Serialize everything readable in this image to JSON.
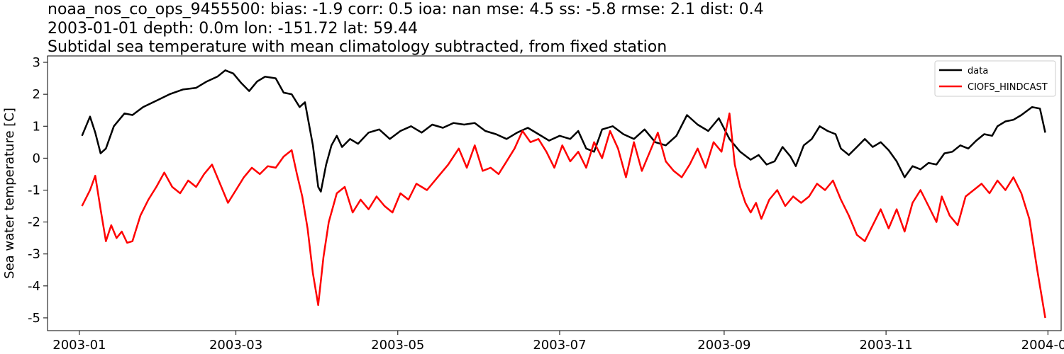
{
  "chart_data": {
    "type": "line",
    "title_lines": [
      "noaa_nos_co_ops_9455500: bias: -1.9  corr: 0.5  ioa: nan  mse: 4.5  ss: -5.8  rmse: 2.1  dist: 0.4",
      "2003-01-01 depth: 0.0m lon: -151.72 lat: 59.44",
      "Subtidal sea temperature with mean climatology subtracted, from fixed station"
    ],
    "xlabel": "",
    "ylabel": "Sea water temperature [C]",
    "xlim": [
      "2002-12-20",
      "2004-01-06"
    ],
    "ylim": [
      -5.4,
      3.2
    ],
    "xticks": [
      "2003-01",
      "2003-03",
      "2003-05",
      "2003-07",
      "2003-09",
      "2003-11",
      "2004-01"
    ],
    "yticks": [
      3,
      2,
      1,
      0,
      -1,
      -2,
      -3,
      -4,
      -5
    ],
    "legend_position": "top-right",
    "series": [
      {
        "name": "data",
        "color": "#000000",
        "points": [
          [
            "2003-01-02",
            0.7
          ],
          [
            "2003-01-05",
            1.3
          ],
          [
            "2003-01-07",
            0.8
          ],
          [
            "2003-01-09",
            0.15
          ],
          [
            "2003-01-11",
            0.3
          ],
          [
            "2003-01-14",
            1.0
          ],
          [
            "2003-01-18",
            1.4
          ],
          [
            "2003-01-21",
            1.35
          ],
          [
            "2003-01-25",
            1.6
          ],
          [
            "2003-01-30",
            1.8
          ],
          [
            "2003-02-04",
            2.0
          ],
          [
            "2003-02-09",
            2.15
          ],
          [
            "2003-02-14",
            2.2
          ],
          [
            "2003-02-18",
            2.4
          ],
          [
            "2003-02-22",
            2.55
          ],
          [
            "2003-02-25",
            2.75
          ],
          [
            "2003-02-28",
            2.65
          ],
          [
            "2003-03-03",
            2.35
          ],
          [
            "2003-03-06",
            2.1
          ],
          [
            "2003-03-09",
            2.4
          ],
          [
            "2003-03-12",
            2.55
          ],
          [
            "2003-03-16",
            2.5
          ],
          [
            "2003-03-19",
            2.05
          ],
          [
            "2003-03-22",
            2.0
          ],
          [
            "2003-03-25",
            1.6
          ],
          [
            "2003-03-27",
            1.75
          ],
          [
            "2003-03-30",
            0.4
          ],
          [
            "2003-04-01",
            -0.9
          ],
          [
            "2003-04-02",
            -1.05
          ],
          [
            "2003-04-04",
            -0.2
          ],
          [
            "2003-04-06",
            0.4
          ],
          [
            "2003-04-08",
            0.7
          ],
          [
            "2003-04-10",
            0.35
          ],
          [
            "2003-04-13",
            0.6
          ],
          [
            "2003-04-16",
            0.45
          ],
          [
            "2003-04-20",
            0.8
          ],
          [
            "2003-04-24",
            0.9
          ],
          [
            "2003-04-28",
            0.6
          ],
          [
            "2003-05-02",
            0.85
          ],
          [
            "2003-05-06",
            1.0
          ],
          [
            "2003-05-10",
            0.8
          ],
          [
            "2003-05-14",
            1.05
          ],
          [
            "2003-05-18",
            0.95
          ],
          [
            "2003-05-22",
            1.1
          ],
          [
            "2003-05-26",
            1.05
          ],
          [
            "2003-05-30",
            1.1
          ],
          [
            "2003-06-03",
            0.85
          ],
          [
            "2003-06-07",
            0.75
          ],
          [
            "2003-06-11",
            0.6
          ],
          [
            "2003-06-15",
            0.8
          ],
          [
            "2003-06-19",
            0.95
          ],
          [
            "2003-06-23",
            0.75
          ],
          [
            "2003-06-27",
            0.55
          ],
          [
            "2003-07-01",
            0.7
          ],
          [
            "2003-07-05",
            0.6
          ],
          [
            "2003-07-08",
            0.85
          ],
          [
            "2003-07-11",
            0.3
          ],
          [
            "2003-07-14",
            0.2
          ],
          [
            "2003-07-17",
            0.9
          ],
          [
            "2003-07-21",
            1.0
          ],
          [
            "2003-07-25",
            0.75
          ],
          [
            "2003-07-29",
            0.6
          ],
          [
            "2003-08-02",
            0.9
          ],
          [
            "2003-08-06",
            0.5
          ],
          [
            "2003-08-10",
            0.4
          ],
          [
            "2003-08-14",
            0.7
          ],
          [
            "2003-08-18",
            1.35
          ],
          [
            "2003-08-22",
            1.05
          ],
          [
            "2003-08-26",
            0.85
          ],
          [
            "2003-08-30",
            1.25
          ],
          [
            "2003-09-03",
            0.6
          ],
          [
            "2003-09-07",
            0.2
          ],
          [
            "2003-09-11",
            -0.05
          ],
          [
            "2003-09-14",
            0.1
          ],
          [
            "2003-09-17",
            -0.2
          ],
          [
            "2003-09-20",
            -0.1
          ],
          [
            "2003-09-23",
            0.35
          ],
          [
            "2003-09-26",
            0.05
          ],
          [
            "2003-09-28",
            -0.25
          ],
          [
            "2003-10-01",
            0.4
          ],
          [
            "2003-10-04",
            0.6
          ],
          [
            "2003-10-07",
            1.0
          ],
          [
            "2003-10-10",
            0.85
          ],
          [
            "2003-10-13",
            0.75
          ],
          [
            "2003-10-15",
            0.3
          ],
          [
            "2003-10-18",
            0.1
          ],
          [
            "2003-10-21",
            0.35
          ],
          [
            "2003-10-24",
            0.6
          ],
          [
            "2003-10-27",
            0.35
          ],
          [
            "2003-10-30",
            0.5
          ],
          [
            "2003-11-02",
            0.25
          ],
          [
            "2003-11-05",
            -0.1
          ],
          [
            "2003-11-08",
            -0.6
          ],
          [
            "2003-11-11",
            -0.25
          ],
          [
            "2003-11-14",
            -0.35
          ],
          [
            "2003-11-17",
            -0.15
          ],
          [
            "2003-11-20",
            -0.2
          ],
          [
            "2003-11-23",
            0.15
          ],
          [
            "2003-11-26",
            0.2
          ],
          [
            "2003-11-29",
            0.4
          ],
          [
            "2003-12-02",
            0.3
          ],
          [
            "2003-12-05",
            0.55
          ],
          [
            "2003-12-08",
            0.75
          ],
          [
            "2003-12-11",
            0.7
          ],
          [
            "2003-12-13",
            1.0
          ],
          [
            "2003-12-16",
            1.15
          ],
          [
            "2003-12-19",
            1.2
          ],
          [
            "2003-12-22",
            1.35
          ],
          [
            "2003-12-26",
            1.6
          ],
          [
            "2003-12-29",
            1.55
          ],
          [
            "2003-12-31",
            0.8
          ]
        ]
      },
      {
        "name": "CIOFS_HINDCAST",
        "color": "#ff0000",
        "points": [
          [
            "2003-01-02",
            -1.5
          ],
          [
            "2003-01-05",
            -1.0
          ],
          [
            "2003-01-07",
            -0.55
          ],
          [
            "2003-01-09",
            -1.6
          ],
          [
            "2003-01-11",
            -2.6
          ],
          [
            "2003-01-13",
            -2.1
          ],
          [
            "2003-01-15",
            -2.5
          ],
          [
            "2003-01-17",
            -2.3
          ],
          [
            "2003-01-19",
            -2.65
          ],
          [
            "2003-01-21",
            -2.6
          ],
          [
            "2003-01-24",
            -1.8
          ],
          [
            "2003-01-27",
            -1.3
          ],
          [
            "2003-01-30",
            -0.9
          ],
          [
            "2003-02-02",
            -0.45
          ],
          [
            "2003-02-05",
            -0.9
          ],
          [
            "2003-02-08",
            -1.1
          ],
          [
            "2003-02-11",
            -0.7
          ],
          [
            "2003-02-14",
            -0.9
          ],
          [
            "2003-02-17",
            -0.5
          ],
          [
            "2003-02-20",
            -0.2
          ],
          [
            "2003-02-23",
            -0.8
          ],
          [
            "2003-02-26",
            -1.4
          ],
          [
            "2003-03-01",
            -1.0
          ],
          [
            "2003-03-04",
            -0.6
          ],
          [
            "2003-03-07",
            -0.3
          ],
          [
            "2003-03-10",
            -0.5
          ],
          [
            "2003-03-13",
            -0.25
          ],
          [
            "2003-03-16",
            -0.3
          ],
          [
            "2003-03-19",
            0.05
          ],
          [
            "2003-03-22",
            0.25
          ],
          [
            "2003-03-24",
            -0.5
          ],
          [
            "2003-03-26",
            -1.2
          ],
          [
            "2003-03-28",
            -2.2
          ],
          [
            "2003-03-30",
            -3.6
          ],
          [
            "2003-04-01",
            -4.6
          ],
          [
            "2003-04-03",
            -3.1
          ],
          [
            "2003-04-05",
            -2.0
          ],
          [
            "2003-04-08",
            -1.1
          ],
          [
            "2003-04-11",
            -0.9
          ],
          [
            "2003-04-14",
            -1.7
          ],
          [
            "2003-04-17",
            -1.3
          ],
          [
            "2003-04-20",
            -1.6
          ],
          [
            "2003-04-23",
            -1.2
          ],
          [
            "2003-04-26",
            -1.5
          ],
          [
            "2003-04-29",
            -1.7
          ],
          [
            "2003-05-02",
            -1.1
          ],
          [
            "2003-05-05",
            -1.3
          ],
          [
            "2003-05-08",
            -0.8
          ],
          [
            "2003-05-12",
            -1.0
          ],
          [
            "2003-05-16",
            -0.6
          ],
          [
            "2003-05-20",
            -0.2
          ],
          [
            "2003-05-24",
            0.3
          ],
          [
            "2003-05-27",
            -0.3
          ],
          [
            "2003-05-30",
            0.4
          ],
          [
            "2003-06-02",
            -0.4
          ],
          [
            "2003-06-05",
            -0.3
          ],
          [
            "2003-06-08",
            -0.5
          ],
          [
            "2003-06-11",
            -0.1
          ],
          [
            "2003-06-14",
            0.3
          ],
          [
            "2003-06-17",
            0.85
          ],
          [
            "2003-06-20",
            0.5
          ],
          [
            "2003-06-23",
            0.6
          ],
          [
            "2003-06-26",
            0.2
          ],
          [
            "2003-06-29",
            -0.3
          ],
          [
            "2003-07-02",
            0.4
          ],
          [
            "2003-07-05",
            -0.1
          ],
          [
            "2003-07-08",
            0.2
          ],
          [
            "2003-07-11",
            -0.3
          ],
          [
            "2003-07-14",
            0.5
          ],
          [
            "2003-07-17",
            0.0
          ],
          [
            "2003-07-20",
            0.85
          ],
          [
            "2003-07-23",
            0.3
          ],
          [
            "2003-07-26",
            -0.6
          ],
          [
            "2003-07-29",
            0.5
          ],
          [
            "2003-08-01",
            -0.4
          ],
          [
            "2003-08-04",
            0.2
          ],
          [
            "2003-08-07",
            0.8
          ],
          [
            "2003-08-10",
            -0.1
          ],
          [
            "2003-08-13",
            -0.4
          ],
          [
            "2003-08-16",
            -0.6
          ],
          [
            "2003-08-19",
            -0.2
          ],
          [
            "2003-08-22",
            0.3
          ],
          [
            "2003-08-25",
            -0.3
          ],
          [
            "2003-08-28",
            0.5
          ],
          [
            "2003-08-31",
            0.2
          ],
          [
            "2003-09-03",
            1.4
          ],
          [
            "2003-09-05",
            -0.2
          ],
          [
            "2003-09-07",
            -0.9
          ],
          [
            "2003-09-09",
            -1.4
          ],
          [
            "2003-09-11",
            -1.7
          ],
          [
            "2003-09-13",
            -1.4
          ],
          [
            "2003-09-15",
            -1.9
          ],
          [
            "2003-09-18",
            -1.3
          ],
          [
            "2003-09-21",
            -1.0
          ],
          [
            "2003-09-24",
            -1.5
          ],
          [
            "2003-09-27",
            -1.2
          ],
          [
            "2003-09-30",
            -1.4
          ],
          [
            "2003-10-03",
            -1.2
          ],
          [
            "2003-10-06",
            -0.8
          ],
          [
            "2003-10-09",
            -1.0
          ],
          [
            "2003-10-12",
            -0.7
          ],
          [
            "2003-10-15",
            -1.3
          ],
          [
            "2003-10-18",
            -1.8
          ],
          [
            "2003-10-21",
            -2.4
          ],
          [
            "2003-10-24",
            -2.6
          ],
          [
            "2003-10-27",
            -2.1
          ],
          [
            "2003-10-30",
            -1.6
          ],
          [
            "2003-11-02",
            -2.2
          ],
          [
            "2003-11-05",
            -1.6
          ],
          [
            "2003-11-08",
            -2.3
          ],
          [
            "2003-11-11",
            -1.4
          ],
          [
            "2003-11-14",
            -1.0
          ],
          [
            "2003-11-17",
            -1.5
          ],
          [
            "2003-11-20",
            -2.0
          ],
          [
            "2003-11-22",
            -1.2
          ],
          [
            "2003-11-25",
            -1.8
          ],
          [
            "2003-11-28",
            -2.1
          ],
          [
            "2003-12-01",
            -1.2
          ],
          [
            "2003-12-04",
            -1.0
          ],
          [
            "2003-12-07",
            -0.8
          ],
          [
            "2003-12-10",
            -1.1
          ],
          [
            "2003-12-13",
            -0.7
          ],
          [
            "2003-12-16",
            -1.0
          ],
          [
            "2003-12-19",
            -0.6
          ],
          [
            "2003-12-22",
            -1.1
          ],
          [
            "2003-12-25",
            -1.9
          ],
          [
            "2003-12-28",
            -3.5
          ],
          [
            "2003-12-31",
            -5.0
          ]
        ]
      }
    ]
  }
}
